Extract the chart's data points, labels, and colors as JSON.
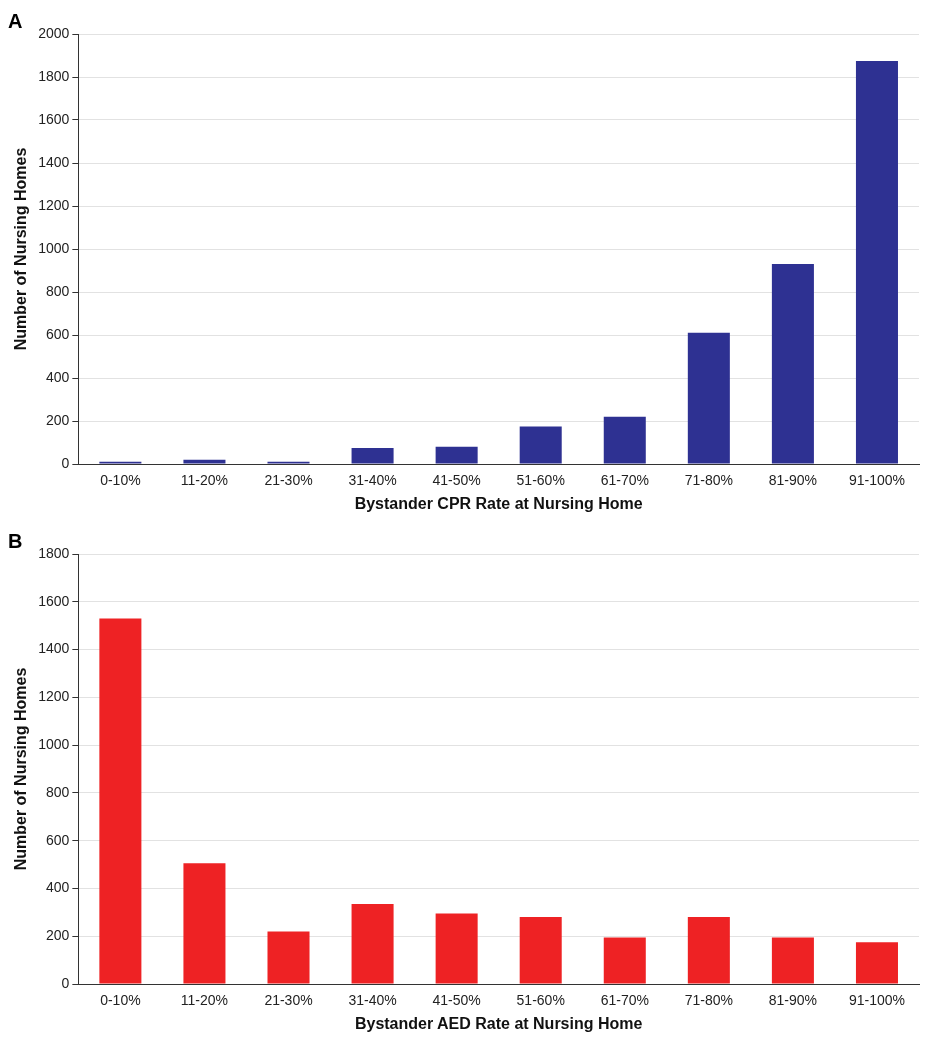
{
  "chart_data": [
    {
      "type": "bar",
      "title": "A",
      "xlabel": "Bystander CPR Rate at Nursing Home",
      "ylabel": "Number of Nursing Homes",
      "categories": [
        "0-10%",
        "11-20%",
        "21-30%",
        "31-40%",
        "41-50%",
        "51-60%",
        "61-70%",
        "71-80%",
        "81-90%",
        "91-100%"
      ],
      "values": [
        10,
        20,
        10,
        75,
        80,
        175,
        220,
        610,
        930,
        1875
      ],
      "color": "#2e3192",
      "ylim": [
        0,
        2000
      ],
      "yticks": [
        0,
        200,
        400,
        600,
        800,
        1000,
        1200,
        1400,
        1600,
        1800,
        2000
      ],
      "grid": "y",
      "legend": false
    },
    {
      "type": "bar",
      "title": "B",
      "xlabel": "Bystander AED Rate at Nursing Home",
      "ylabel": "Number of Nursing Homes",
      "categories": [
        "0-10%",
        "11-20%",
        "21-30%",
        "31-40%",
        "41-50%",
        "51-60%",
        "61-70%",
        "71-80%",
        "81-90%",
        "91-100%"
      ],
      "values": [
        1530,
        505,
        220,
        335,
        295,
        280,
        195,
        280,
        195,
        175
      ],
      "color": "#ee2224",
      "ylim": [
        0,
        1800
      ],
      "yticks": [
        0,
        200,
        400,
        600,
        800,
        1000,
        1200,
        1400,
        1600,
        1800
      ],
      "grid": "y",
      "legend": false
    }
  ]
}
